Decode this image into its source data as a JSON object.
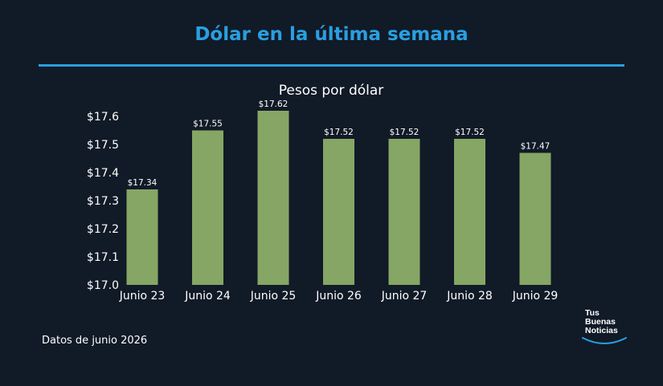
{
  "header": {
    "title": "Dólar en la última semana"
  },
  "footer": {
    "note": "Datos de junio 2026"
  },
  "logo": {
    "line1": "Tus",
    "line2": "Buenas",
    "line3": "Noticias"
  },
  "colors": {
    "background": "#111a27",
    "accent": "#2a9fe0",
    "bar": "#86a665"
  },
  "chart_data": {
    "type": "bar",
    "title": "Pesos por dólar",
    "categories": [
      "Junio 23",
      "Junio 24",
      "Junio 25",
      "Junio 26",
      "Junio 27",
      "Junio 28",
      "Junio 29"
    ],
    "values": [
      17.34,
      17.55,
      17.62,
      17.52,
      17.52,
      17.52,
      17.47
    ],
    "data_labels": [
      "$17.34",
      "$17.55",
      "$17.62",
      "$17.52",
      "$17.52",
      "$17.52",
      "$17.47"
    ],
    "yticks": [
      17.0,
      17.1,
      17.2,
      17.3,
      17.4,
      17.5,
      17.6
    ],
    "ytick_labels": [
      "$17.0",
      "$17.1",
      "$17.2",
      "$17.3",
      "$17.4",
      "$17.5",
      "$17.6"
    ],
    "ylim": [
      17.0,
      17.6
    ],
    "xlabel": "",
    "ylabel": "",
    "grid": false,
    "legend": "none"
  }
}
